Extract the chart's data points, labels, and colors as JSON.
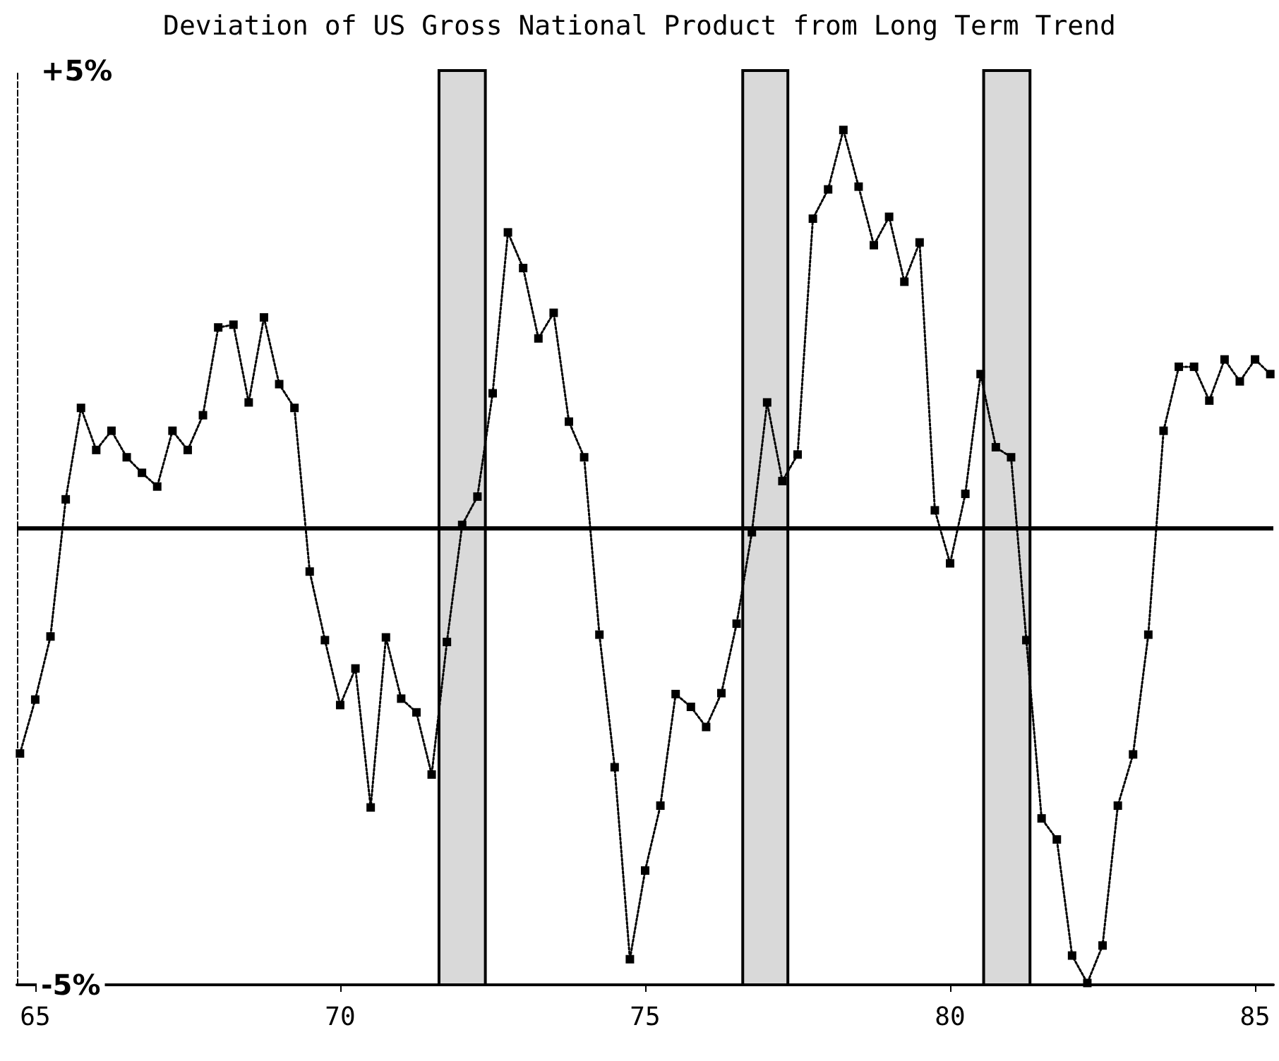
{
  "chart_data": {
    "type": "line",
    "title": "Deviation of US Gross National Product from Long Term Trend",
    "x": [
      64.75,
      65,
      65.25,
      65.5,
      65.75,
      66,
      66.25,
      66.5,
      66.75,
      67,
      67.25,
      67.5,
      67.75,
      68,
      68.25,
      68.5,
      68.75,
      69,
      69.25,
      69.5,
      69.75,
      70,
      70.25,
      70.5,
      70.75,
      71,
      71.25,
      71.5,
      71.75,
      72,
      72.25,
      72.5,
      72.75,
      73,
      73.25,
      73.5,
      73.75,
      74,
      74.25,
      74.5,
      74.75,
      75,
      75.25,
      75.5,
      75.75,
      76,
      76.25,
      76.5,
      76.75,
      77,
      77.25,
      77.5,
      77.75,
      78,
      78.25,
      78.5,
      78.75,
      79,
      79.25,
      79.5,
      79.75,
      80,
      80.25,
      80.5,
      80.75,
      81,
      81.25,
      81.5,
      81.75,
      82,
      82.25,
      82.5,
      82.75,
      83,
      83.25,
      83.5,
      83.75,
      84,
      84.25,
      84.5,
      84.75,
      85,
      85.25
    ],
    "series": [
      {
        "color": "#000000",
        "values": [
          -2.47,
          -1.88,
          -1.19,
          0.31,
          1.31,
          0.85,
          1.06,
          0.77,
          0.6,
          0.45,
          1.06,
          0.85,
          1.23,
          2.19,
          2.22,
          1.37,
          2.3,
          1.57,
          1.31,
          -0.48,
          -1.23,
          -1.94,
          -1.54,
          -3.06,
          -1.2,
          -1.87,
          -2.02,
          -2.7,
          -1.25,
          0.03,
          0.34,
          1.47,
          3.23,
          2.84,
          2.07,
          2.35,
          1.16,
          0.77,
          -1.17,
          -2.62,
          -4.72,
          -3.75,
          -3.04,
          -1.82,
          -1.96,
          -2.18,
          -1.81,
          -1.05,
          -0.05,
          1.37,
          0.51,
          0.8,
          3.38,
          3.7,
          4.35,
          3.73,
          3.09,
          3.4,
          2.69,
          3.12,
          0.19,
          -0.39,
          0.37,
          1.68,
          0.88,
          0.77,
          -1.23,
          -3.18,
          -3.41,
          -4.68,
          -4.98,
          -4.57,
          -3.04,
          -2.48,
          -1.17,
          1.06,
          1.76,
          1.76,
          1.39,
          1.84,
          1.6,
          1.84,
          1.68
        ]
      }
    ],
    "xlim": [
      64.7,
      85.3
    ],
    "xticks": [
      65,
      70,
      75,
      80,
      85
    ],
    "ylim": [
      -5,
      5
    ],
    "yticks": [
      {
        "value": 5,
        "label": "+5%"
      },
      {
        "value": -5,
        "label": "-5%"
      }
    ],
    "ref_lines": [
      {
        "axis": "y",
        "value": 0,
        "color": "#000000"
      }
    ],
    "bands": [
      {
        "axis": "x",
        "from": 71.62,
        "to": 72.38,
        "color": "#d9d9d9"
      },
      {
        "axis": "x",
        "from": 76.6,
        "to": 77.34,
        "color": "#d9d9d9"
      },
      {
        "axis": "x",
        "from": 80.55,
        "to": 81.31,
        "color": "#d9d9d9"
      }
    ],
    "marker": "square",
    "line_style": "dotted"
  }
}
